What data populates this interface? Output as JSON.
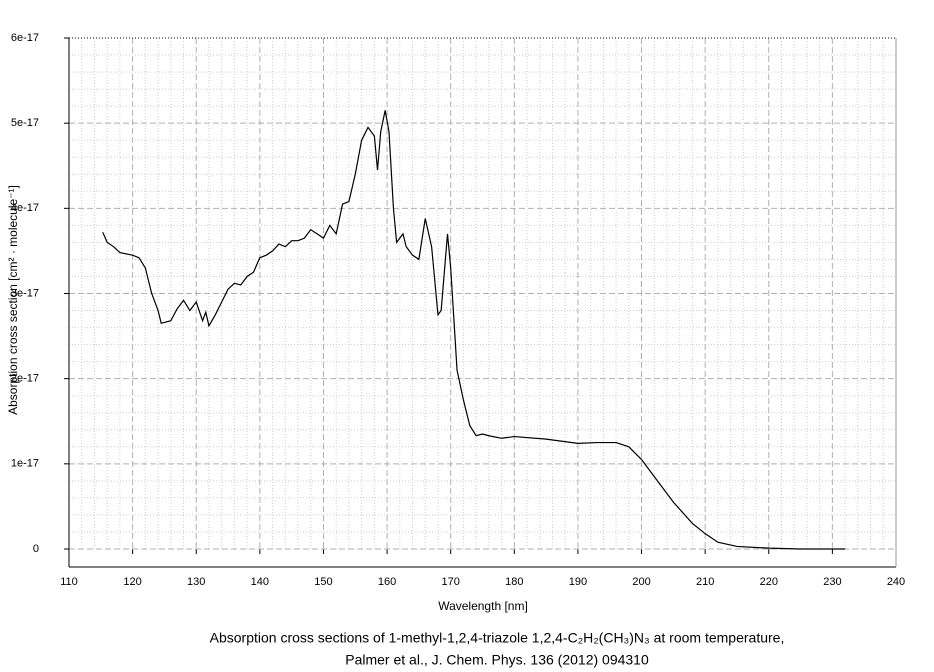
{
  "chart_data": {
    "type": "line",
    "xlabel": "Wavelength [nm]",
    "ylabel": "Absorption cross section [cm² · molecule⁻¹]",
    "caption": [
      "Absorption cross sections of 1-methyl-1,2,4-triazole 1,2,4-C₂H₂(CH₃)N₃ at room temperature,",
      "Palmer et al., J. Chem. Phys. 136 (2012) 094310"
    ],
    "xlim": [
      110,
      240
    ],
    "xticks": [
      110,
      120,
      130,
      140,
      150,
      160,
      170,
      180,
      190,
      200,
      210,
      220,
      230,
      240
    ],
    "ylim": [
      0,
      6e-17
    ],
    "yticks": [
      0,
      1e-17,
      2e-17,
      3e-17,
      4e-17,
      5e-17,
      6e-17
    ],
    "grid": true,
    "minor_grid": 5,
    "series": [
      {
        "color": "#000000",
        "x": [
          115.3,
          116,
          117,
          118,
          120,
          121,
          122,
          123,
          124,
          124.5,
          126,
          127,
          128,
          129,
          130,
          131,
          131.5,
          132,
          133,
          134,
          135,
          136,
          137,
          138,
          139,
          140,
          141,
          142,
          143,
          144,
          145,
          146,
          147,
          148,
          149,
          150,
          151,
          152,
          153,
          154,
          155,
          156,
          157,
          158,
          158.5,
          159,
          159.7,
          160.3,
          161,
          161.5,
          162.5,
          163,
          164,
          165,
          166,
          167,
          168,
          168.5,
          169.5,
          170,
          171,
          172,
          173,
          174,
          175,
          176,
          178,
          180,
          185,
          190,
          193,
          196,
          198,
          200,
          202,
          205,
          208,
          210,
          212,
          215,
          220,
          225,
          232
        ],
        "values": [
          3.72e-17,
          3.6e-17,
          3.55e-17,
          3.48e-17,
          3.45e-17,
          3.42e-17,
          3.3e-17,
          3e-17,
          2.8e-17,
          2.65e-17,
          2.68e-17,
          2.82e-17,
          2.92e-17,
          2.8e-17,
          2.9e-17,
          2.68e-17,
          2.78e-17,
          2.62e-17,
          2.75e-17,
          2.9e-17,
          3.05e-17,
          3.12e-17,
          3.1e-17,
          3.2e-17,
          3.25e-17,
          3.42e-17,
          3.45e-17,
          3.5e-17,
          3.58e-17,
          3.55e-17,
          3.62e-17,
          3.62e-17,
          3.65e-17,
          3.75e-17,
          3.7e-17,
          3.65e-17,
          3.8e-17,
          3.7e-17,
          4.05e-17,
          4.08e-17,
          4.4e-17,
          4.8e-17,
          4.95e-17,
          4.85e-17,
          4.45e-17,
          4.9e-17,
          5.15e-17,
          4.9e-17,
          4e-17,
          3.6e-17,
          3.7e-17,
          3.55e-17,
          3.45e-17,
          3.4e-17,
          3.88e-17,
          3.55e-17,
          2.75e-17,
          2.8e-17,
          3.7e-17,
          3.3e-17,
          2.1e-17,
          1.75e-17,
          1.45e-17,
          1.33e-17,
          1.35e-17,
          1.33e-17,
          1.3e-17,
          1.32e-17,
          1.29e-17,
          1.24e-17,
          1.25e-17,
          1.25e-17,
          1.2e-17,
          1.05e-17,
          8.5e-18,
          5.5e-18,
          3e-18,
          1.8e-18,
          8e-19,
          3e-19,
          1e-19,
          0,
          0
        ]
      }
    ]
  }
}
